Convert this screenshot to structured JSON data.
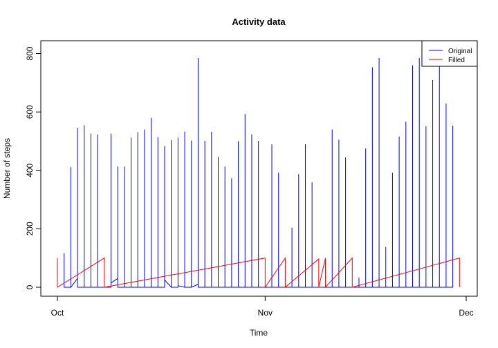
{
  "chart_data": {
    "type": "line",
    "title": "Activity data",
    "xlabel": "Time",
    "ylabel": "Number of steps",
    "xlim": [
      "2012-10-01",
      "2012-12-01"
    ],
    "ylim": [
      0,
      806
    ],
    "x_ticks": [
      {
        "date": "2012-10-01",
        "label": "Oct"
      },
      {
        "date": "2012-11-01",
        "label": "Nov"
      },
      {
        "date": "2012-12-01",
        "label": "Dec"
      }
    ],
    "y_ticks": [
      0,
      200,
      400,
      600,
      800
    ],
    "grid": false,
    "legend": {
      "position": "top-right",
      "items": [
        {
          "label": "Original",
          "color": "#0000ff"
        },
        {
          "label": "Filled",
          "color": "#ff0000"
        }
      ]
    },
    "series": [
      {
        "name": "Original",
        "color": "#0000ff",
        "points": [
          [
            "2012-10-02",
            0
          ],
          [
            "2012-10-02",
            117
          ],
          [
            "2012-10-02",
            0
          ],
          [
            "2012-10-03",
            0
          ],
          [
            "2012-10-03",
            297
          ],
          [
            "2012-10-03",
            0
          ],
          [
            "2012-10-03",
            411
          ],
          [
            "2012-10-03",
            0
          ],
          [
            "2012-10-04",
            30
          ],
          [
            "2012-10-04",
            546
          ],
          [
            "2012-10-04",
            0
          ],
          [
            "2012-10-05",
            0
          ],
          [
            "2012-10-05",
            555
          ],
          [
            "2012-10-05",
            0
          ],
          [
            "2012-10-06",
            0
          ],
          [
            "2012-10-06",
            526
          ],
          [
            "2012-10-06",
            0
          ],
          [
            "2012-10-07",
            0
          ],
          [
            "2012-10-07",
            523
          ],
          [
            "2012-10-07",
            0
          ],
          [
            "2012-10-07",
            35
          ],
          [
            "2012-10-07",
            0
          ],
          [
            "2012-10-09",
            0
          ],
          [
            "2012-10-09",
            526
          ],
          [
            "2012-10-09",
            15
          ],
          [
            "2012-10-10",
            30
          ],
          [
            "2012-10-10",
            413
          ],
          [
            "2012-10-10",
            0
          ],
          [
            "2012-10-10",
            365
          ],
          [
            "2012-10-10",
            0
          ],
          [
            "2012-10-11",
            0
          ],
          [
            "2012-10-11",
            413
          ],
          [
            "2012-10-11",
            0
          ],
          [
            "2012-10-12",
            0
          ],
          [
            "2012-10-12",
            512
          ],
          [
            "2012-10-12",
            0
          ],
          [
            "2012-10-13",
            0
          ],
          [
            "2012-10-13",
            531
          ],
          [
            "2012-10-13",
            0
          ],
          [
            "2012-10-14",
            0
          ],
          [
            "2012-10-14",
            540
          ],
          [
            "2012-10-14",
            0
          ],
          [
            "2012-10-14",
            45
          ],
          [
            "2012-10-14",
            0
          ],
          [
            "2012-10-15",
            0
          ],
          [
            "2012-10-15",
            580
          ],
          [
            "2012-10-15",
            0
          ],
          [
            "2012-10-16",
            0
          ],
          [
            "2012-10-16",
            514
          ],
          [
            "2012-10-16",
            0
          ],
          [
            "2012-10-17",
            0
          ],
          [
            "2012-10-17",
            90
          ],
          [
            "2012-10-17",
            0
          ],
          [
            "2012-10-17",
            483
          ],
          [
            "2012-10-17",
            25
          ],
          [
            "2012-10-18",
            0
          ],
          [
            "2012-10-18",
            504
          ],
          [
            "2012-10-18",
            0
          ],
          [
            "2012-10-19",
            0
          ],
          [
            "2012-10-19",
            512
          ],
          [
            "2012-10-19",
            5
          ],
          [
            "2012-10-20",
            0
          ],
          [
            "2012-10-20",
            533
          ],
          [
            "2012-10-20",
            0
          ],
          [
            "2012-10-21",
            0
          ],
          [
            "2012-10-21",
            502
          ],
          [
            "2012-10-21",
            0
          ],
          [
            "2012-10-21",
            55
          ],
          [
            "2012-10-21",
            0
          ],
          [
            "2012-10-22",
            10
          ],
          [
            "2012-10-22",
            785
          ],
          [
            "2012-10-22",
            0
          ],
          [
            "2012-10-23",
            0
          ],
          [
            "2012-10-23",
            501
          ],
          [
            "2012-10-23",
            0
          ],
          [
            "2012-10-24",
            0
          ],
          [
            "2012-10-24",
            532
          ],
          [
            "2012-10-24",
            0
          ],
          [
            "2012-10-25",
            0
          ],
          [
            "2012-10-25",
            446
          ],
          [
            "2012-10-25",
            0
          ],
          [
            "2012-10-26",
            0
          ],
          [
            "2012-10-26",
            413
          ],
          [
            "2012-10-26",
            0
          ],
          [
            "2012-10-27",
            0
          ],
          [
            "2012-10-27",
            373
          ],
          [
            "2012-10-27",
            0
          ],
          [
            "2012-10-28",
            0
          ],
          [
            "2012-10-28",
            500
          ],
          [
            "2012-10-28",
            0
          ],
          [
            "2012-10-28",
            88
          ],
          [
            "2012-10-28",
            0
          ],
          [
            "2012-10-29",
            0
          ],
          [
            "2012-10-29",
            593
          ],
          [
            "2012-10-29",
            0
          ],
          [
            "2012-10-30",
            0
          ],
          [
            "2012-10-30",
            523
          ],
          [
            "2012-10-30",
            0
          ],
          [
            "2012-10-31",
            0
          ],
          [
            "2012-10-31",
            501
          ],
          [
            "2012-10-31",
            0
          ],
          [
            "2012-11-02",
            0
          ],
          [
            "2012-11-02",
            489
          ],
          [
            "2012-11-02",
            0
          ],
          [
            "2012-11-03",
            0
          ],
          [
            "2012-11-03",
            392
          ],
          [
            "2012-11-03",
            0
          ],
          [
            "2012-11-05",
            0
          ],
          [
            "2012-11-05",
            204
          ],
          [
            "2012-11-05",
            0
          ],
          [
            "2012-11-06",
            0
          ],
          [
            "2012-11-06",
            387
          ],
          [
            "2012-11-06",
            0
          ],
          [
            "2012-11-07",
            0
          ],
          [
            "2012-11-07",
            490
          ],
          [
            "2012-11-07",
            0
          ],
          [
            "2012-11-08",
            0
          ],
          [
            "2012-11-08",
            359
          ],
          [
            "2012-11-08",
            0
          ],
          [
            "2012-11-11",
            0
          ],
          [
            "2012-11-11",
            540
          ],
          [
            "2012-11-11",
            0
          ],
          [
            "2012-11-12",
            0
          ],
          [
            "2012-11-12",
            505
          ],
          [
            "2012-11-12",
            0
          ],
          [
            "2012-11-13",
            0
          ],
          [
            "2012-11-13",
            444
          ],
          [
            "2012-11-13",
            0
          ],
          [
            "2012-11-15",
            0
          ],
          [
            "2012-11-15",
            33
          ],
          [
            "2012-11-15",
            0
          ],
          [
            "2012-11-16",
            0
          ],
          [
            "2012-11-16",
            475
          ],
          [
            "2012-11-16",
            0
          ],
          [
            "2012-11-17",
            0
          ],
          [
            "2012-11-17",
            753
          ],
          [
            "2012-11-17",
            0
          ],
          [
            "2012-11-18",
            0
          ],
          [
            "2012-11-18",
            785
          ],
          [
            "2012-11-18",
            0
          ],
          [
            "2012-11-19",
            0
          ],
          [
            "2012-11-19",
            138
          ],
          [
            "2012-11-19",
            0
          ],
          [
            "2012-11-20",
            0
          ],
          [
            "2012-11-20",
            392
          ],
          [
            "2012-11-20",
            0
          ],
          [
            "2012-11-21",
            0
          ],
          [
            "2012-11-21",
            516
          ],
          [
            "2012-11-21",
            0
          ],
          [
            "2012-11-22",
            0
          ],
          [
            "2012-11-22",
            567
          ],
          [
            "2012-11-22",
            0
          ],
          [
            "2012-11-23",
            0
          ],
          [
            "2012-11-23",
            760
          ],
          [
            "2012-11-23",
            0
          ],
          [
            "2012-11-24",
            0
          ],
          [
            "2012-11-24",
            785
          ],
          [
            "2012-11-24",
            0
          ],
          [
            "2012-11-24",
            42
          ],
          [
            "2012-11-24",
            0
          ],
          [
            "2012-11-25",
            0
          ],
          [
            "2012-11-25",
            551
          ],
          [
            "2012-11-25",
            0
          ],
          [
            "2012-11-26",
            0
          ],
          [
            "2012-11-26",
            709
          ],
          [
            "2012-11-26",
            0
          ],
          [
            "2012-11-27",
            0
          ],
          [
            "2012-11-27",
            757
          ],
          [
            "2012-11-27",
            0
          ],
          [
            "2012-11-27",
            485
          ],
          [
            "2012-11-27",
            0
          ],
          [
            "2012-11-28",
            0
          ],
          [
            "2012-11-28",
            629
          ],
          [
            "2012-11-28",
            0
          ],
          [
            "2012-11-29",
            0
          ],
          [
            "2012-11-29",
            553
          ],
          [
            "2012-11-29",
            0
          ]
        ]
      },
      {
        "name": "Filled",
        "color": "#ff0000",
        "points": [
          [
            "2012-10-01",
            100
          ],
          [
            "2012-10-01",
            0
          ],
          [
            "2012-10-08",
            100
          ],
          [
            "2012-10-08",
            0
          ],
          [
            "2012-11-01",
            100
          ],
          [
            "2012-11-01",
            0
          ],
          [
            "2012-11-04",
            100
          ],
          [
            "2012-11-04",
            0
          ],
          [
            "2012-11-09",
            97
          ],
          [
            "2012-11-09",
            0
          ],
          [
            "2012-11-10",
            100
          ],
          [
            "2012-11-10",
            0
          ],
          [
            "2012-11-14",
            100
          ],
          [
            "2012-11-14",
            0
          ],
          [
            "2012-11-30",
            100
          ],
          [
            "2012-11-30",
            0
          ]
        ]
      }
    ]
  }
}
